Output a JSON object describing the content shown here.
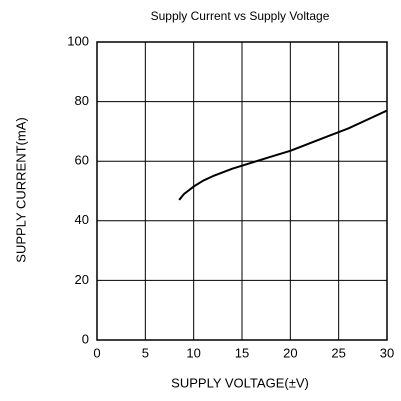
{
  "chart_data": {
    "type": "line",
    "title": "Supply Current vs Supply Voltage",
    "x_label": "SUPPLY VOLTAGE(±V)",
    "y_label": "SUPPLY CURRENT(mA)",
    "series": [
      {
        "name": "Supply Current",
        "color": "#000000",
        "x": [
          8.5,
          9,
          10,
          11,
          12,
          14,
          16,
          18,
          20,
          22,
          24,
          26,
          28,
          30
        ],
        "values": [
          47,
          49,
          51.5,
          53.5,
          55,
          57.5,
          59.5,
          61.5,
          63.5,
          66,
          68.5,
          71,
          74,
          77
        ]
      }
    ],
    "xlim": [
      0,
      30
    ],
    "xticks": [
      0,
      5,
      10,
      15,
      20,
      25,
      30
    ],
    "ylim": [
      0,
      100
    ],
    "yticks": [
      0,
      20,
      40,
      60,
      80,
      100
    ],
    "grid": true
  }
}
